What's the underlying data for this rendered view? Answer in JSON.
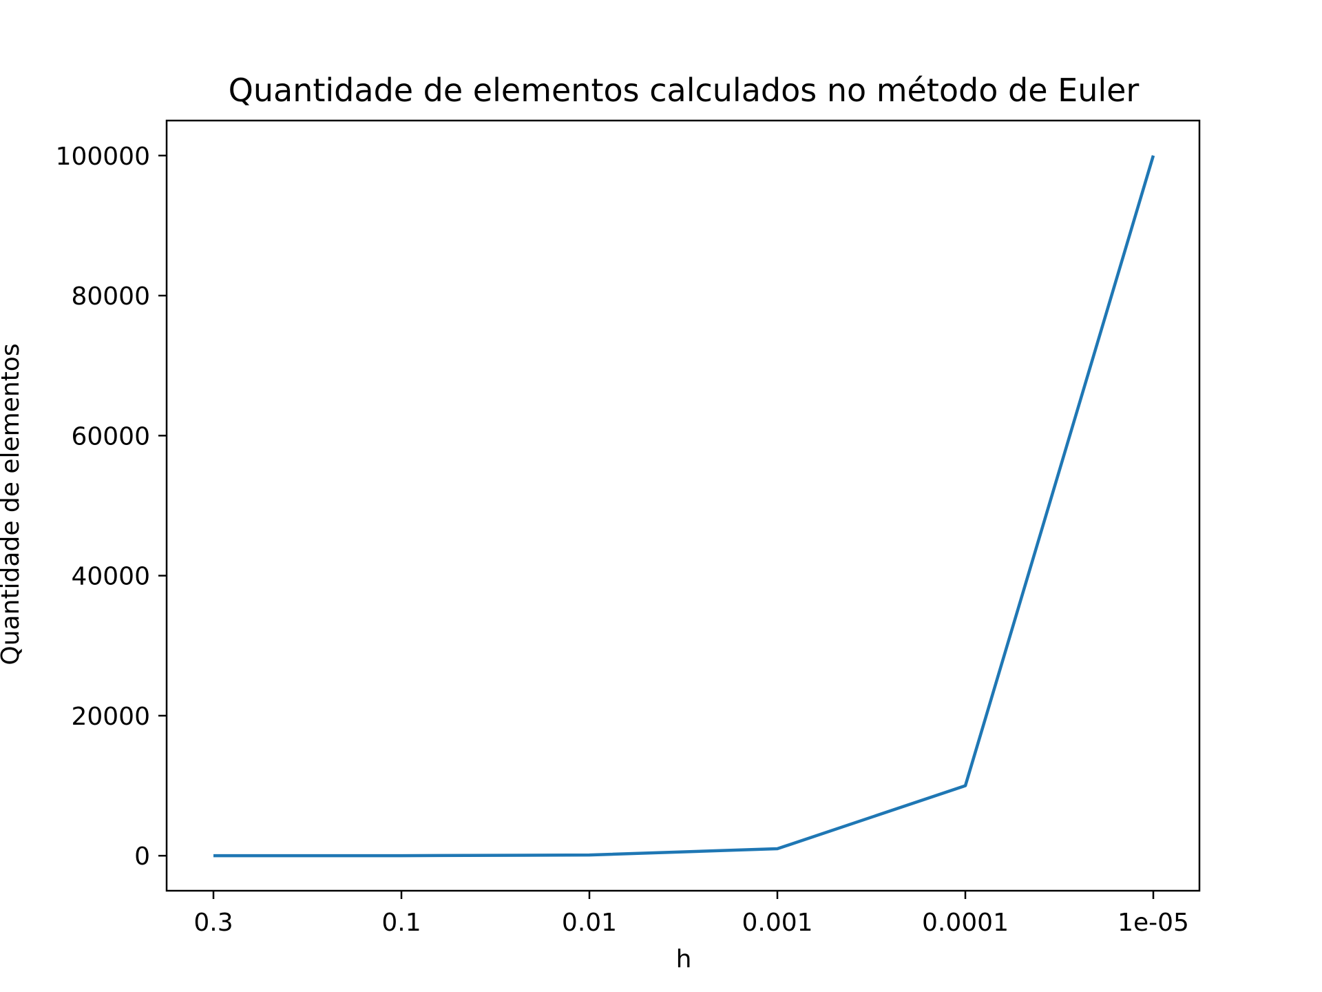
{
  "chart_data": {
    "type": "line",
    "title": "Quantidade de elementos calculados no método de Euler",
    "xlabel": "h",
    "ylabel": "Quantidade de elementos",
    "x_categories": [
      "0.3",
      "0.1",
      "0.01",
      "0.001",
      "0.0001",
      "1e-05"
    ],
    "y_ticks": [
      0,
      20000,
      40000,
      60000,
      80000,
      100000
    ],
    "ylim": [
      -5000,
      105000
    ],
    "grid": false,
    "series": [
      {
        "color": "#1f77b4",
        "values": [
          3,
          10,
          100,
          1000,
          10000,
          100000
        ]
      }
    ]
  }
}
